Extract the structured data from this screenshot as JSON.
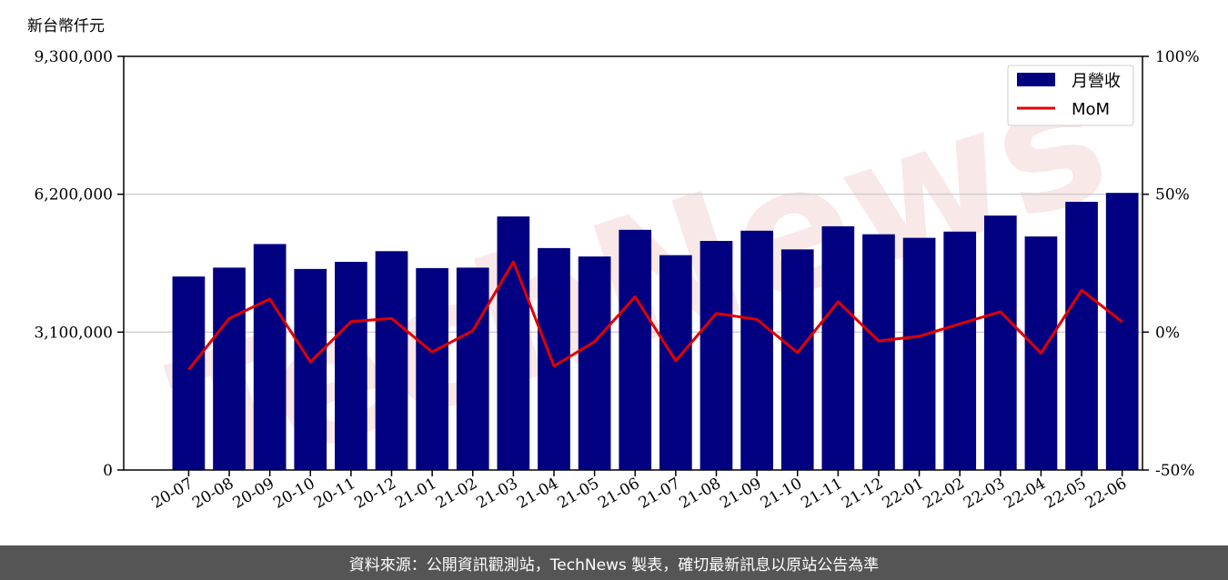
{
  "chart_data": {
    "type": "bar",
    "unit_label": "新台幣仟元",
    "categories": [
      "20-07",
      "20-08",
      "20-09",
      "20-10",
      "20-11",
      "20-12",
      "21-01",
      "21-02",
      "21-03",
      "21-04",
      "21-05",
      "21-06",
      "21-07",
      "21-08",
      "21-09",
      "21-10",
      "21-11",
      "21-12",
      "22-01",
      "22-02",
      "22-03",
      "22-04",
      "22-05",
      "22-06"
    ],
    "series": [
      {
        "name": "月營收",
        "type": "bar",
        "axis": "left",
        "color": "#000080",
        "values": [
          4350000,
          4550000,
          5080000,
          4520000,
          4680000,
          4920000,
          4540000,
          4550000,
          5700000,
          4990000,
          4800000,
          5400000,
          4830000,
          5150000,
          5380000,
          4960000,
          5480000,
          5300000,
          5220000,
          5360000,
          5720000,
          5250000,
          6030000,
          6230000
        ]
      },
      {
        "name": "MoM",
        "type": "line",
        "axis": "right",
        "color": "#e00000",
        "values": [
          -13.6,
          5.0,
          12.0,
          -10.8,
          3.8,
          5.0,
          -7.2,
          0.5,
          25.5,
          -12.3,
          -3.5,
          12.8,
          -10.4,
          6.8,
          4.6,
          -7.4,
          11.0,
          -3.2,
          -1.5,
          3.0,
          7.4,
          -7.6,
          15.2,
          3.7
        ]
      }
    ],
    "yticks_left": [
      "0",
      "3,100,000",
      "6,200,000",
      "9,300,000"
    ],
    "yticks_right": [
      "-50%",
      "0%",
      "50%",
      "100%"
    ],
    "ylim_left": [
      0,
      9300000
    ],
    "ylim_right": [
      -50,
      100
    ],
    "grid": "horizontal",
    "legend_position": "top-right"
  },
  "watermark_text": "TechNews",
  "footer_text": "資料來源：公開資訊觀測站，TechNews 製表，確切最新訊息以原站公告為準"
}
